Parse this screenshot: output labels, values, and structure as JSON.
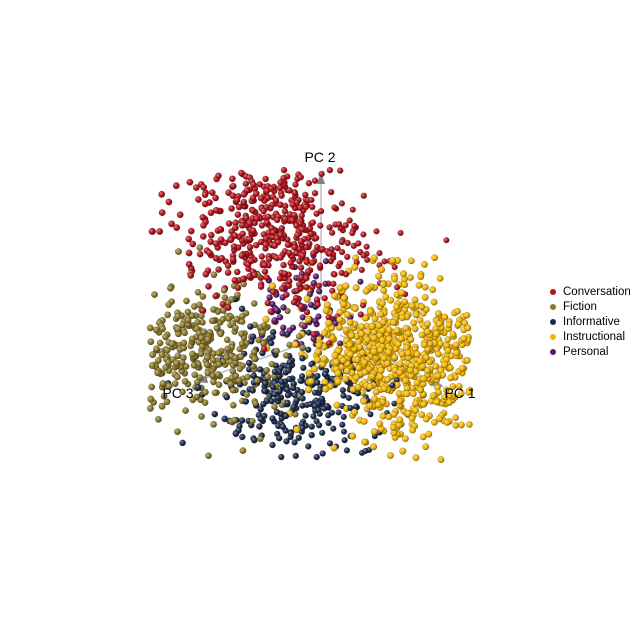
{
  "chart_data": {
    "type": "scatter",
    "projection": "3d",
    "axes": [
      {
        "name": "PC 1"
      },
      {
        "name": "PC 2"
      },
      {
        "name": "PC 3"
      }
    ],
    "legend_position": "right",
    "grid": false,
    "series": [
      {
        "name": "Conversation",
        "color": "#b5121b",
        "cluster_centroid": [
          -0.6,
          1.9,
          0.4
        ],
        "spread": [
          0.9,
          0.7,
          0.6
        ]
      },
      {
        "name": "Fiction",
        "color": "#8a7a2a",
        "cluster_centroid": [
          -1.4,
          -0.3,
          1.6
        ],
        "spread": [
          0.8,
          0.6,
          0.8
        ]
      },
      {
        "name": "Informative",
        "color": "#1b2a4a",
        "cluster_centroid": [
          -0.1,
          -1.1,
          0.5
        ],
        "spread": [
          0.7,
          0.6,
          0.6
        ]
      },
      {
        "name": "Instructional",
        "color": "#f2b705",
        "cluster_centroid": [
          1.6,
          0.0,
          -0.2
        ],
        "spread": [
          0.8,
          0.7,
          0.6
        ]
      },
      {
        "name": "Personal",
        "color": "#5a1a6a",
        "cluster_centroid": [
          -0.2,
          0.5,
          0.2
        ],
        "spread": [
          0.4,
          0.4,
          0.4
        ]
      }
    ]
  }
}
